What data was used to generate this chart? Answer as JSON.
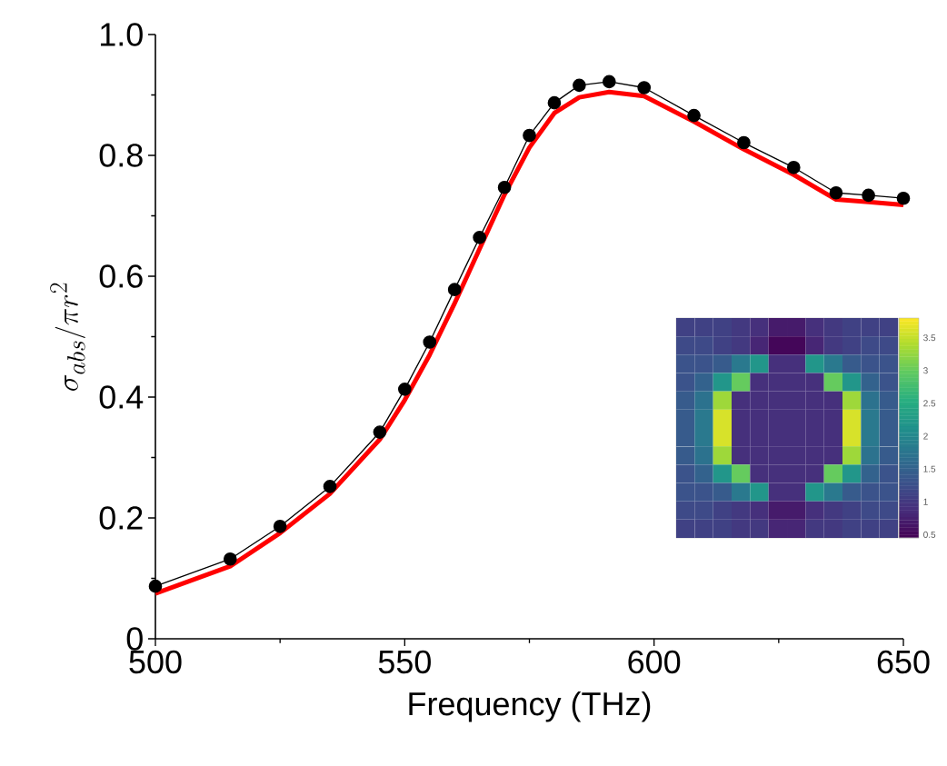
{
  "chart_data": [
    {
      "type": "line",
      "xlabel": "Frequency (THz)",
      "ylabel": "\\sigma_{abs}/\\pi r^{2}",
      "xlim": [
        500,
        650
      ],
      "xticks": [
        500,
        550,
        600,
        650
      ],
      "ylim": [
        0,
        1
      ],
      "yticks": [
        0,
        0.2,
        0.4,
        0.6,
        0.8,
        {
          "value": 1,
          "label": "1.0"
        }
      ],
      "series": [
        {
          "color": "#000000",
          "marker": "circle",
          "x": [
            500,
            515,
            525,
            535,
            545,
            550,
            555,
            560,
            565,
            570,
            575,
            580,
            585,
            591,
            598,
            608,
            618,
            628,
            636.5,
            643,
            650
          ],
          "values": [
            0.087,
            0.132,
            0.186,
            0.252,
            0.342,
            0.413,
            0.491,
            0.578,
            0.664,
            0.747,
            0.833,
            0.887,
            0.916,
            0.922,
            0.912,
            0.866,
            0.821,
            0.78,
            0.738,
            0.734,
            0.729
          ]
        },
        {
          "color": "#ff0000",
          "marker": "none",
          "x": [
            500,
            515,
            525,
            535,
            545,
            550,
            555,
            560,
            565,
            570,
            575,
            580,
            585,
            591,
            598,
            608,
            618,
            628,
            636.5,
            643,
            650
          ],
          "values": [
            0.075,
            0.12,
            0.175,
            0.24,
            0.33,
            0.395,
            0.47,
            0.555,
            0.645,
            0.735,
            0.813,
            0.87,
            0.896,
            0.905,
            0.898,
            0.856,
            0.81,
            0.768,
            0.727,
            0.723,
            0.718
          ]
        }
      ]
    },
    {
      "type": "heatmap",
      "categories": [
        null,
        null,
        null,
        null,
        null,
        null,
        null,
        null,
        null,
        null,
        null,
        null
      ],
      "y_categories": [
        null,
        null,
        null,
        null,
        null,
        null,
        null,
        null,
        null,
        null,
        null,
        null
      ],
      "clim": [
        0.45,
        3.8
      ],
      "cticks": [
        0.5,
        1,
        1.5,
        2,
        2.5,
        3,
        3.5
      ],
      "cells": [
        [
          1.1,
          1.1,
          1.1,
          1.0,
          0.9,
          0.7,
          0.7,
          0.9,
          1.0,
          1.1,
          1.1,
          1.1
        ],
        [
          1.2,
          1.2,
          1.1,
          1.0,
          0.8,
          0.5,
          0.5,
          0.8,
          1.0,
          1.1,
          1.2,
          1.2
        ],
        [
          1.3,
          1.3,
          1.4,
          1.8,
          2.2,
          0.9,
          0.9,
          2.2,
          1.8,
          1.4,
          1.3,
          1.3
        ],
        [
          1.3,
          1.5,
          2.2,
          3.0,
          0.9,
          0.9,
          0.9,
          0.9,
          3.0,
          2.2,
          1.5,
          1.3
        ],
        [
          1.4,
          1.7,
          3.3,
          0.9,
          0.9,
          0.9,
          0.9,
          0.9,
          0.9,
          3.3,
          1.7,
          1.4
        ],
        [
          1.4,
          1.8,
          3.6,
          0.9,
          0.9,
          0.9,
          0.9,
          0.9,
          0.9,
          3.6,
          1.8,
          1.4
        ],
        [
          1.4,
          1.8,
          3.6,
          0.9,
          0.9,
          0.9,
          0.9,
          0.9,
          0.9,
          3.6,
          1.8,
          1.4
        ],
        [
          1.4,
          1.7,
          3.3,
          0.9,
          0.9,
          0.9,
          0.9,
          0.9,
          0.9,
          3.3,
          1.7,
          1.4
        ],
        [
          1.3,
          1.5,
          2.2,
          3.0,
          0.9,
          0.9,
          0.9,
          0.9,
          3.0,
          2.2,
          1.5,
          1.3
        ],
        [
          1.3,
          1.3,
          1.4,
          1.8,
          2.2,
          0.9,
          0.9,
          2.2,
          1.8,
          1.4,
          1.3,
          1.3
        ],
        [
          1.2,
          1.2,
          1.1,
          1.0,
          0.9,
          0.7,
          0.7,
          0.9,
          1.0,
          1.1,
          1.2,
          1.2
        ],
        [
          1.1,
          1.1,
          1.1,
          1.0,
          1.0,
          0.8,
          0.8,
          1.0,
          1.0,
          1.1,
          1.1,
          1.1
        ]
      ]
    }
  ]
}
